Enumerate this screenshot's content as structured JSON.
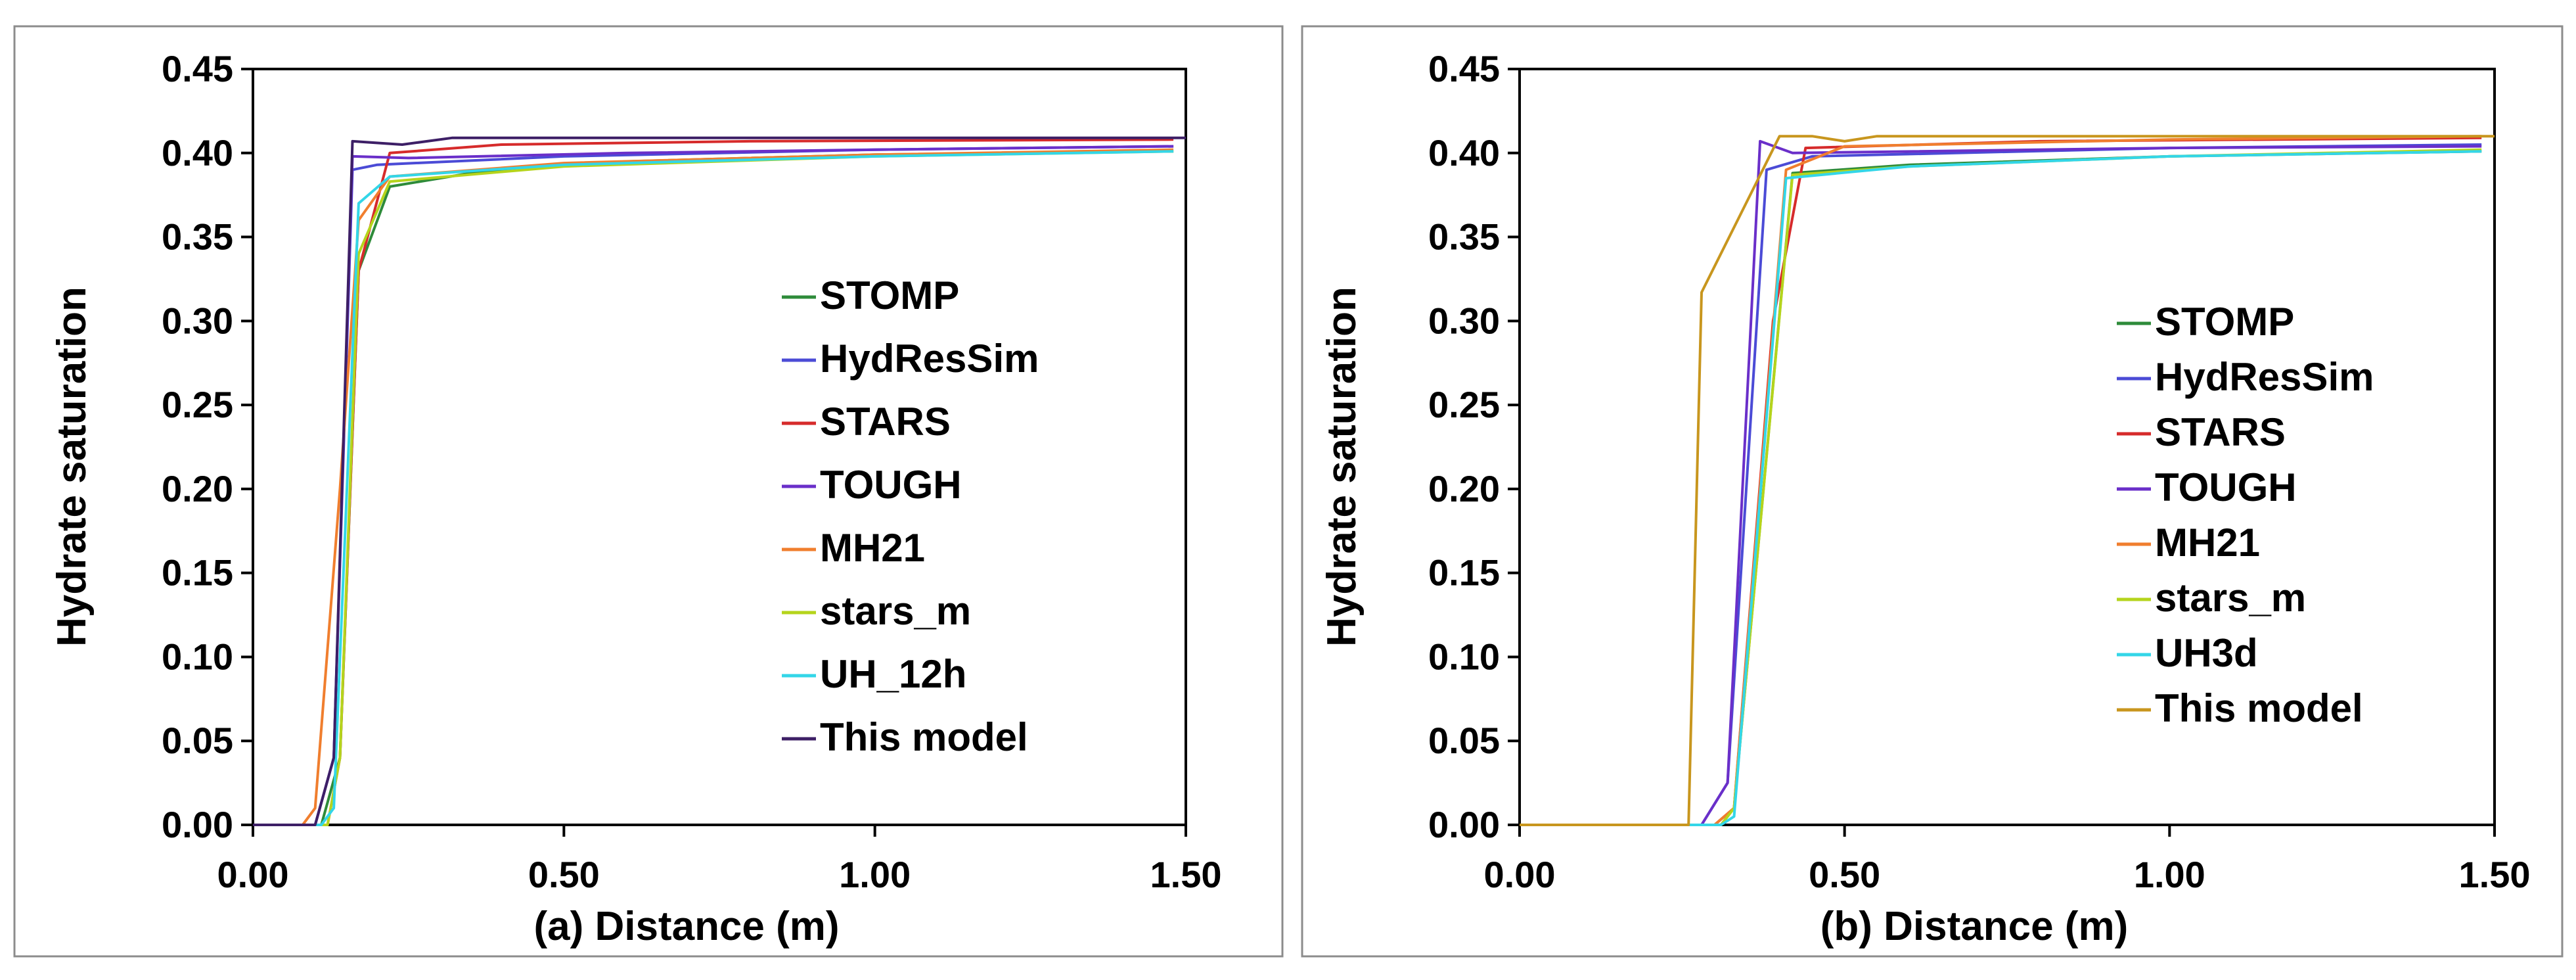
{
  "chart_data": [
    {
      "type": "line",
      "title": "",
      "xlabel": "(a) Distance (m)",
      "ylabel": "Hydrate saturation",
      "xlim": [
        0,
        1.5
      ],
      "ylim": [
        0,
        0.45
      ],
      "xticks": [
        "0.00",
        "0.50",
        "1.00",
        "1.50"
      ],
      "yticks": [
        "0.00",
        "0.05",
        "0.10",
        "0.15",
        "0.20",
        "0.25",
        "0.30",
        "0.35",
        "0.40",
        "0.45"
      ],
      "grid": false,
      "legend_position": "center-right",
      "series": [
        {
          "name": "STOMP",
          "color": "#2e8b3a",
          "points": [
            [
              0,
              0
            ],
            [
              0.11,
              0
            ],
            [
              0.14,
              0.04
            ],
            [
              0.17,
              0.33
            ],
            [
              0.22,
              0.38
            ],
            [
              0.35,
              0.388
            ],
            [
              0.6,
              0.395
            ],
            [
              1.0,
              0.399
            ],
            [
              1.48,
              0.401
            ]
          ]
        },
        {
          "name": "HydResSim",
          "color": "#4b4bd6",
          "points": [
            [
              0,
              0
            ],
            [
              0.1,
              0
            ],
            [
              0.13,
              0.04
            ],
            [
              0.16,
              0.39
            ],
            [
              0.2,
              0.393
            ],
            [
              0.5,
              0.398
            ],
            [
              1.0,
              0.402
            ],
            [
              1.48,
              0.404
            ]
          ]
        },
        {
          "name": "STARS",
          "color": "#d62b2b",
          "points": [
            [
              0,
              0
            ],
            [
              0.12,
              0
            ],
            [
              0.14,
              0.04
            ],
            [
              0.17,
              0.33
            ],
            [
              0.22,
              0.4
            ],
            [
              0.4,
              0.405
            ],
            [
              0.8,
              0.407
            ],
            [
              1.48,
              0.408
            ]
          ]
        },
        {
          "name": "TOUGH",
          "color": "#6a2fc9",
          "points": [
            [
              0,
              0
            ],
            [
              0.1,
              0
            ],
            [
              0.13,
              0.04
            ],
            [
              0.16,
              0.398
            ],
            [
              0.25,
              0.397
            ],
            [
              0.6,
              0.4
            ],
            [
              1.0,
              0.402
            ],
            [
              1.48,
              0.404
            ]
          ]
        },
        {
          "name": "MH21",
          "color": "#f07e2e",
          "points": [
            [
              0,
              0
            ],
            [
              0.08,
              0
            ],
            [
              0.1,
              0.01
            ],
            [
              0.14,
              0.2
            ],
            [
              0.17,
              0.36
            ],
            [
              0.22,
              0.386
            ],
            [
              0.5,
              0.394
            ],
            [
              1.0,
              0.399
            ],
            [
              1.48,
              0.402
            ]
          ]
        },
        {
          "name": "stars_m",
          "color": "#b5d41c",
          "points": [
            [
              0,
              0
            ],
            [
              0.12,
              0
            ],
            [
              0.14,
              0.04
            ],
            [
              0.17,
              0.34
            ],
            [
              0.22,
              0.383
            ],
            [
              0.5,
              0.392
            ],
            [
              1.0,
              0.398
            ],
            [
              1.48,
              0.401
            ]
          ]
        },
        {
          "name": "UH_12h",
          "color": "#33d6e8",
          "points": [
            [
              0,
              0
            ],
            [
              0.11,
              0
            ],
            [
              0.13,
              0.01
            ],
            [
              0.17,
              0.37
            ],
            [
              0.22,
              0.386
            ],
            [
              0.5,
              0.393
            ],
            [
              1.0,
              0.398
            ],
            [
              1.48,
              0.401
            ]
          ]
        },
        {
          "name": "This model",
          "color": "#3d1f66",
          "points": [
            [
              0,
              0
            ],
            [
              0.1,
              0
            ],
            [
              0.13,
              0.04
            ],
            [
              0.16,
              0.407
            ],
            [
              0.24,
              0.405
            ],
            [
              0.32,
              0.409
            ],
            [
              1.0,
              0.409
            ],
            [
              1.5,
              0.409
            ]
          ]
        }
      ]
    },
    {
      "type": "line",
      "title": "",
      "xlabel": "(b) Distance (m)",
      "ylabel": "Hydrate saturation",
      "xlim": [
        0,
        1.5
      ],
      "ylim": [
        0,
        0.45
      ],
      "xticks": [
        "0.00",
        "0.50",
        "1.00",
        "1.50"
      ],
      "yticks": [
        "0.00",
        "0.05",
        "0.10",
        "0.15",
        "0.20",
        "0.25",
        "0.30",
        "0.35",
        "0.40",
        "0.45"
      ],
      "grid": false,
      "legend_position": "center-right",
      "series": [
        {
          "name": "STOMP",
          "color": "#2e8b3a",
          "points": [
            [
              0,
              0
            ],
            [
              0.31,
              0
            ],
            [
              0.33,
              0.01
            ],
            [
              0.42,
              0.388
            ],
            [
              0.6,
              0.393
            ],
            [
              1.0,
              0.398
            ],
            [
              1.48,
              0.401
            ]
          ]
        },
        {
          "name": "HydResSim",
          "color": "#4b4bd6",
          "points": [
            [
              0,
              0
            ],
            [
              0.28,
              0
            ],
            [
              0.32,
              0.025
            ],
            [
              0.38,
              0.39
            ],
            [
              0.45,
              0.398
            ],
            [
              1.0,
              0.403
            ],
            [
              1.48,
              0.405
            ]
          ]
        },
        {
          "name": "STARS",
          "color": "#d62b2b",
          "points": [
            [
              0,
              0
            ],
            [
              0.3,
              0
            ],
            [
              0.33,
              0.01
            ],
            [
              0.39,
              0.3
            ],
            [
              0.44,
              0.403
            ],
            [
              0.8,
              0.407
            ],
            [
              1.48,
              0.409
            ]
          ]
        },
        {
          "name": "TOUGH",
          "color": "#6a2fc9",
          "points": [
            [
              0,
              0
            ],
            [
              0.28,
              0
            ],
            [
              0.32,
              0.025
            ],
            [
              0.37,
              0.407
            ],
            [
              0.42,
              0.4
            ],
            [
              1.0,
              0.403
            ],
            [
              1.48,
              0.404
            ]
          ]
        },
        {
          "name": "MH21",
          "color": "#f07e2e",
          "points": [
            [
              0,
              0
            ],
            [
              0.3,
              0
            ],
            [
              0.33,
              0.01
            ],
            [
              0.41,
              0.39
            ],
            [
              0.5,
              0.404
            ],
            [
              1.0,
              0.408
            ],
            [
              1.48,
              0.41
            ]
          ]
        },
        {
          "name": "stars_m",
          "color": "#b5d41c",
          "points": [
            [
              0,
              0
            ],
            [
              0.31,
              0
            ],
            [
              0.33,
              0.01
            ],
            [
              0.42,
              0.387
            ],
            [
              0.6,
              0.392
            ],
            [
              1.0,
              0.398
            ],
            [
              1.48,
              0.402
            ]
          ]
        },
        {
          "name": "UH3d",
          "color": "#33d6e8",
          "points": [
            [
              0,
              0
            ],
            [
              0.31,
              0
            ],
            [
              0.33,
              0.005
            ],
            [
              0.41,
              0.385
            ],
            [
              0.6,
              0.392
            ],
            [
              1.0,
              0.398
            ],
            [
              1.48,
              0.401
            ]
          ]
        },
        {
          "name": "This model",
          "color": "#c8961e",
          "points": [
            [
              0,
              0
            ],
            [
              0.26,
              0
            ],
            [
              0.28,
              0.317
            ],
            [
              0.4,
              0.41
            ],
            [
              0.45,
              0.41
            ],
            [
              0.5,
              0.407
            ],
            [
              0.55,
              0.41
            ],
            [
              1.0,
              0.41
            ],
            [
              1.5,
              0.41
            ]
          ]
        }
      ]
    }
  ]
}
